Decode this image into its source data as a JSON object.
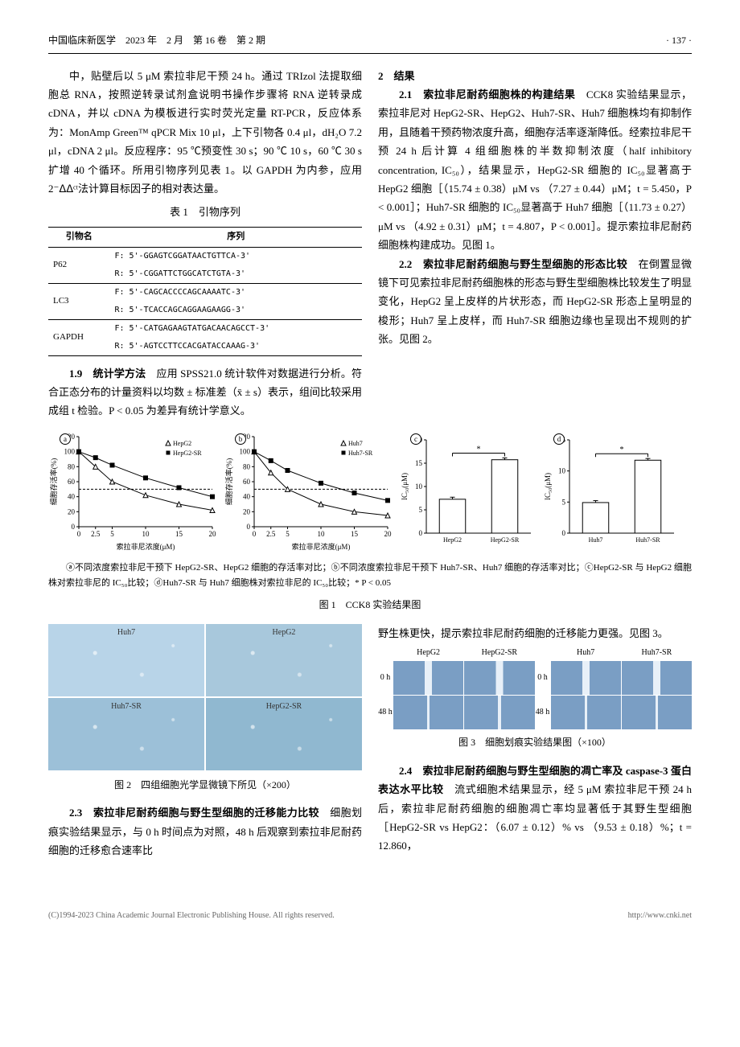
{
  "header": {
    "journal": "中国临床新医学　2023 年　2 月　第 16 卷　第 2 期",
    "page": "· 137 ·"
  },
  "body": {
    "p1": "中，贴壁后以 5 μM 索拉非尼干预 24 h。通过 TRIzol 法提取细胞总 RNA，按照逆转录试剂盒说明书操作步骤将 RNA 逆转录成 cDNA，并以 cDNA 为模板进行实时荧光定量 RT-PCR，反应体系为：MonAmp Green™ qPCR Mix 10 μl，上下引物各 0.4 μl，dH₂O 7.2 μl，cDNA 2 μl。反应程序：95 ℃预变性 30 s；90 ℃ 10 s，60 ℃ 30 s 扩增 40 个循环。所用引物序列见表 1。以 GAPDH 为内参，应用 2⁻ᐃᐃᶜᵗ法计算目标因子的相对表达量。",
    "p2_head": "1.9　统计学方法",
    "p2": "　应用 SPSS21.0 统计软件对数据进行分析。符合正态分布的计量资料以均数 ± 标准差（x̄ ± s）表示，组间比较采用成组 t 检验。P < 0.05 为差异有统计学意义。",
    "p3_head": "2　结果",
    "p4_head": "2.1　索拉非尼耐药细胞株的构建结果",
    "p4": "　CCK8 实验结果显示，索拉非尼对 HepG2-SR、HepG2、Huh7-SR、Huh7 细胞株均有抑制作用，且随着干预药物浓度升高，细胞存活率逐渐降低。经索拉非尼干预 24 h 后计算 4 组细胞株的半数抑制浓度（half inhibitory concentration, IC₅₀），结果显示，HepG2-SR 细胞的 IC₅₀显著高于 HepG2 细胞［（15.74 ± 0.38）μM vs （7.27 ± 0.44）μM；t = 5.450，P < 0.001］；Huh7-SR 细胞的 IC₅₀显著高于 Huh7 细胞［（11.73 ± 0.27）μM vs （4.92 ± 0.31）μM；t = 4.807，P < 0.001］。提示索拉非尼耐药细胞株构建成功。见图 1。",
    "p5_head": "2.2　索拉非尼耐药细胞与野生型细胞的形态比较",
    "p5": "　在倒置显微镜下可见索拉非尼耐药细胞株的形态与野生型细胞株比较发生了明显变化，HepG2 呈上皮样的片状形态，而 HepG2-SR 形态上呈明显的梭形；Huh7 呈上皮样，而 Huh7-SR 细胞边缘也呈现出不规则的扩张。见图 2。",
    "p6_head": "2.3　索拉非尼耐药细胞与野生型细胞的迁移能力比较",
    "p6": "　细胞划痕实验结果显示，与 0 h 时间点为对照，48 h 后观察到索拉非尼耐药细胞的迁移愈合速率比",
    "p7": "野生株更快，提示索拉非尼耐药细胞的迁移能力更强。见图 3。",
    "p8_head": "2.4　索拉非尼耐药细胞与野生型细胞的凋亡率及 caspase-3 蛋白表达水平比较",
    "p8": "　流式细胞术结果显示，经 5 μM 索拉非尼干预 24 h 后，索拉非尼耐药细胞的细胞凋亡率均显著低于其野生型细胞［HepG2-SR vs HepG2：（6.07 ± 0.12）% vs （9.53 ± 0.18）%；t = 12.860，"
  },
  "table1": {
    "title": "表 1　引物序列",
    "headers": [
      "引物名",
      "序列"
    ],
    "rows": [
      {
        "name": "P62",
        "fwd": "F: 5'-GGAGTCGGATAACTGTTCA-3'",
        "rev": "R: 5'-CGGATTCTGGCATCTGTA-3'"
      },
      {
        "name": "LC3",
        "fwd": "F: 5'-CAGCACCCCAGCAAAATC-3'",
        "rev": "R: 5'-TCACCAGCAGGAAGAAGG-3'"
      },
      {
        "name": "GAPDH",
        "fwd": "F: 5'-CATGAGAAGTATGACAACAGCCT-3'",
        "rev": "R: 5'-AGTCCTTCCACGATACCAAAG-3'"
      }
    ]
  },
  "fig1": {
    "caption": "ⓐ不同浓度索拉非尼干预下 HepG2-SR、HepG2 细胞的存活率对比；ⓑ不同浓度索拉非尼干预下 Huh7-SR、Huh7 细胞的存活率对比；ⓒHepG2-SR 与 HepG2 细胞株对索拉非尼的 IC₅₀比较；ⓓHuh7-SR 与 Huh7 细胞株对索拉非尼的 IC₅₀比较；* P < 0.05",
    "title": "图 1　CCK8 实验结果图",
    "chart_a": {
      "type": "line",
      "badge": "a",
      "xlabel": "索拉非尼浓度(μM)",
      "ylabel": "细胞存活率(%)",
      "xticks": [
        0,
        2.5,
        5,
        10,
        15,
        20
      ],
      "yticks": [
        0,
        20,
        40,
        60,
        80,
        100,
        120
      ],
      "xlim": [
        0,
        20
      ],
      "ylim": [
        0,
        120
      ],
      "ref_line_y": 50,
      "series": [
        {
          "name": "HepG2",
          "marker": "triangle",
          "color": "#000000",
          "x": [
            0,
            2.5,
            5,
            10,
            15,
            20
          ],
          "y": [
            100,
            80,
            60,
            42,
            30,
            22
          ]
        },
        {
          "name": "HepG2-SR",
          "marker": "square",
          "color": "#000000",
          "x": [
            0,
            2.5,
            5,
            10,
            15,
            20
          ],
          "y": [
            100,
            92,
            82,
            65,
            52,
            40
          ]
        }
      ],
      "bg": "#ffffff",
      "axis_color": "#000000",
      "label_fontsize": 9
    },
    "chart_b": {
      "type": "line",
      "badge": "b",
      "xlabel": "索拉非尼浓度(μM)",
      "ylabel": "细胞存活率(%)",
      "xticks": [
        0,
        2.5,
        5,
        10,
        15,
        20
      ],
      "yticks": [
        0,
        20,
        40,
        60,
        80,
        100,
        120
      ],
      "xlim": [
        0,
        20
      ],
      "ylim": [
        0,
        120
      ],
      "ref_line_y": 50,
      "series": [
        {
          "name": "Huh7",
          "marker": "triangle",
          "color": "#000000",
          "x": [
            0,
            2.5,
            5,
            10,
            15,
            20
          ],
          "y": [
            100,
            72,
            50,
            30,
            20,
            15
          ]
        },
        {
          "name": "Huh7-SR",
          "marker": "square",
          "color": "#000000",
          "x": [
            0,
            2.5,
            5,
            10,
            15,
            20
          ],
          "y": [
            100,
            88,
            75,
            58,
            45,
            35
          ]
        }
      ],
      "bg": "#ffffff",
      "axis_color": "#000000",
      "label_fontsize": 9
    },
    "chart_c": {
      "type": "bar",
      "badge": "c",
      "ylabel": "IC₅₀(μM)",
      "yticks": [
        0,
        5,
        10,
        15,
        20
      ],
      "ylim": [
        0,
        20
      ],
      "categories": [
        "HepG2",
        "HepG2-SR"
      ],
      "values": [
        7.27,
        15.74
      ],
      "errors": [
        0.44,
        0.38
      ],
      "bar_color": "#ffffff",
      "bar_border": "#000000",
      "sig": "*",
      "bg": "#ffffff",
      "axis_color": "#000000",
      "label_fontsize": 9,
      "bar_width": 0.5
    },
    "chart_d": {
      "type": "bar",
      "badge": "d",
      "ylabel": "IC₅₀(μM)",
      "yticks": [
        0,
        5,
        10,
        15
      ],
      "ylim": [
        0,
        15
      ],
      "categories": [
        "Huh7",
        "Huh7-SR"
      ],
      "values": [
        4.92,
        11.73
      ],
      "errors": [
        0.31,
        0.27
      ],
      "bar_color": "#ffffff",
      "bar_border": "#000000",
      "sig": "*",
      "bg": "#ffffff",
      "axis_color": "#000000",
      "label_fontsize": 9,
      "bar_width": 0.5
    }
  },
  "fig2": {
    "title": "图 2　四组细胞光学显微镜下所见（×200）",
    "panels": [
      "Huh7",
      "HepG2",
      "Huh7-SR",
      "HepG2-SR"
    ],
    "colors": [
      "#b8d4e8",
      "#a8c8dc",
      "#9cc0d8",
      "#90b8d0"
    ]
  },
  "fig3": {
    "title": "图 3　细胞划痕实验结果图（×100）",
    "col_heads": [
      "HepG2",
      "HepG2-SR",
      "Huh7",
      "Huh7-SR"
    ],
    "row_heads": [
      "0 h",
      "48 h"
    ],
    "bg_color": "#7a9ec4"
  },
  "footer": {
    "left": "(C)1994-2023 China Academic Journal Electronic Publishing House. All rights reserved.",
    "right": "http://www.cnki.net"
  }
}
